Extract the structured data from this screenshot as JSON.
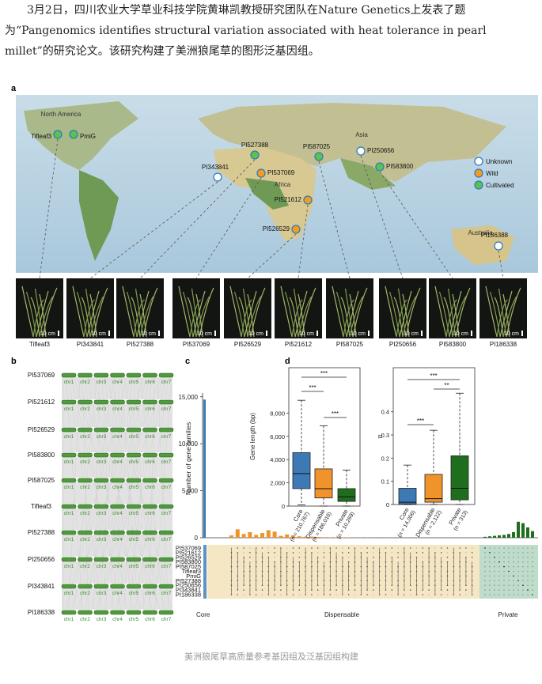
{
  "article": {
    "text": "3月2日，四川农业大学草业科技学院黄琳凯教授研究团队在Nature Genetics上发表了题为“Pangenomics identifies structural variation associated with heat tolerance in pearl millet”的研究论文。该研究构建了美洲狼尾草的图形泛基因组。"
  },
  "figure": {
    "panel_a": {
      "letter": "a",
      "regions": [
        "North America",
        "Asia",
        "Africa",
        "Australia"
      ],
      "legend": [
        {
          "status": "Unknown",
          "color": "#ffffff"
        },
        {
          "status": "Wild",
          "color": "#f39c1f"
        },
        {
          "status": "Cultivated",
          "color": "#5cc34a"
        }
      ],
      "accessions": [
        {
          "name": "Tifleaf3",
          "status": "Cultivated"
        },
        {
          "name": "PmiG",
          "status": "Cultivated"
        },
        {
          "name": "PI527388",
          "status": "Cultivated"
        },
        {
          "name": "PI343841",
          "status": "Unknown"
        },
        {
          "name": "PI537069",
          "status": "Wild"
        },
        {
          "name": "PI587025",
          "status": "Cultivated"
        },
        {
          "name": "PI250656",
          "status": "Unknown"
        },
        {
          "name": "PI583800",
          "status": "Cultivated"
        },
        {
          "name": "PI521612",
          "status": "Wild"
        },
        {
          "name": "PI526529",
          "status": "Wild"
        },
        {
          "name": "PI186388",
          "status": "Unknown"
        }
      ],
      "photos": [
        "Tifleaf3",
        "PI343841",
        "PI527388",
        "PI537069",
        "PI526529",
        "PI521612",
        "PI587025",
        "PI250656",
        "PI583800",
        "PI186338"
      ],
      "scale_label": "10 cm"
    },
    "panel_b": {
      "letter": "b",
      "genomes": [
        "PI537069",
        "PI521612",
        "PI526529",
        "PI583800",
        "PI587025",
        "Tifleaf3",
        "PI527388",
        "PI250656",
        "PI343841",
        "PI186338"
      ],
      "chromosomes": [
        "chr1",
        "chr2",
        "chr3",
        "chr4",
        "chr5",
        "chr6",
        "chr7"
      ]
    },
    "panel_c": {
      "letter": "c",
      "type": "bar",
      "y_label": "Number of gene families",
      "ylim": [
        0,
        15400
      ],
      "yticks": [
        0,
        {
          "value": 5000,
          "label": "5,000"
        },
        {
          "value": 10000,
          "label": "10,000"
        },
        {
          "value": 15000,
          "label": "15,000"
        }
      ],
      "core": {
        "value": 14700,
        "color": "#3d7ab5"
      },
      "dispensable": {
        "color": "#f0932b",
        "values": [
          250,
          900,
          400,
          600,
          300,
          500,
          800,
          650,
          200,
          350,
          250,
          150,
          100,
          120,
          80,
          60,
          50,
          40,
          30,
          30,
          20,
          20,
          15,
          10,
          10,
          10,
          8,
          5,
          5,
          5,
          4,
          3,
          3,
          2,
          2,
          2,
          1,
          1,
          1,
          1
        ]
      },
      "private": {
        "color": "#1f6e1e",
        "values": [
          100,
          150,
          200,
          250,
          300,
          400,
          600,
          1700,
          1550,
          1100,
          700
        ]
      },
      "matrix_rows": [
        "PI537069",
        "PI521612",
        "PI526529",
        "PI583800",
        "PI587025",
        "Tifleaf3",
        "PmiG",
        "PI527388",
        "PI250656",
        "PI343841",
        "PI186338"
      ],
      "groups": [
        "Core",
        "Dispensable",
        "Private"
      ]
    },
    "panel_d": {
      "letter": "d",
      "plots": [
        {
          "type": "box",
          "y_label": "Gene length (bp)",
          "ylim": [
            0,
            11900
          ],
          "yticks": [
            0,
            {
              "value": 2000,
              "label": "2,000"
            },
            {
              "value": 4000,
              "label": "4,000"
            },
            {
              "value": 6000,
              "label": "6,000"
            },
            {
              "value": 8000,
              "label": "8,000"
            }
          ],
          "boxes": [
            {
              "name": "Core",
              "n": "(n = 210,767)",
              "color": "#3d7ab5",
              "whisker_low": 100,
              "q1": 1500,
              "median": 2800,
              "q3": 4600,
              "whisker_high": 9100
            },
            {
              "name": "Dispensable",
              "n": "(n = 186,016)",
              "color": "#f0932b",
              "whisker_low": 0,
              "q1": 700,
              "median": 1500,
              "q3": 3200,
              "whisker_high": 6900
            },
            {
              "name": "Private",
              "n": "(n = 10,269)",
              "color": "#1f6e1e",
              "whisker_low": 0,
              "q1": 400,
              "median": 800,
              "q3": 1500,
              "whisker_high": 3100
            }
          ],
          "significance": [
            {
              "from": 0,
              "to": 2,
              "label": "***"
            },
            {
              "from": 0,
              "to": 1,
              "label": "***"
            },
            {
              "from": 1,
              "to": 2,
              "label": "***"
            }
          ]
        },
        {
          "type": "box",
          "y_label": "π",
          "ylim": [
            0,
            0.59
          ],
          "yticks": [
            0,
            0.1,
            0.2,
            0.3,
            0.4
          ],
          "boxes": [
            {
              "name": "Core",
              "n": "(n = 14,006)",
              "color": "#3d7ab5",
              "whisker_low": 0,
              "q1": 0.002,
              "median": 0.01,
              "q3": 0.07,
              "whisker_high": 0.17
            },
            {
              "name": "Dispensable",
              "n": "(n = 2,122)",
              "color": "#f0932b",
              "whisker_low": 0,
              "q1": 0.01,
              "median": 0.025,
              "q3": 0.13,
              "whisker_high": 0.32
            },
            {
              "name": "Private",
              "n": "(n = 313)",
              "color": "#1f6e1e",
              "whisker_low": 0,
              "q1": 0.02,
              "median": 0.07,
              "q3": 0.21,
              "whisker_high": 0.48
            }
          ],
          "significance": [
            {
              "from": 0,
              "to": 2,
              "label": "***"
            },
            {
              "from": 1,
              "to": 2,
              "label": "**"
            },
            {
              "from": 0,
              "to": 1,
              "label": "***"
            }
          ]
        }
      ]
    }
  },
  "caption": "美洲狼尾草高质量参考基因组及泛基因组构建"
}
